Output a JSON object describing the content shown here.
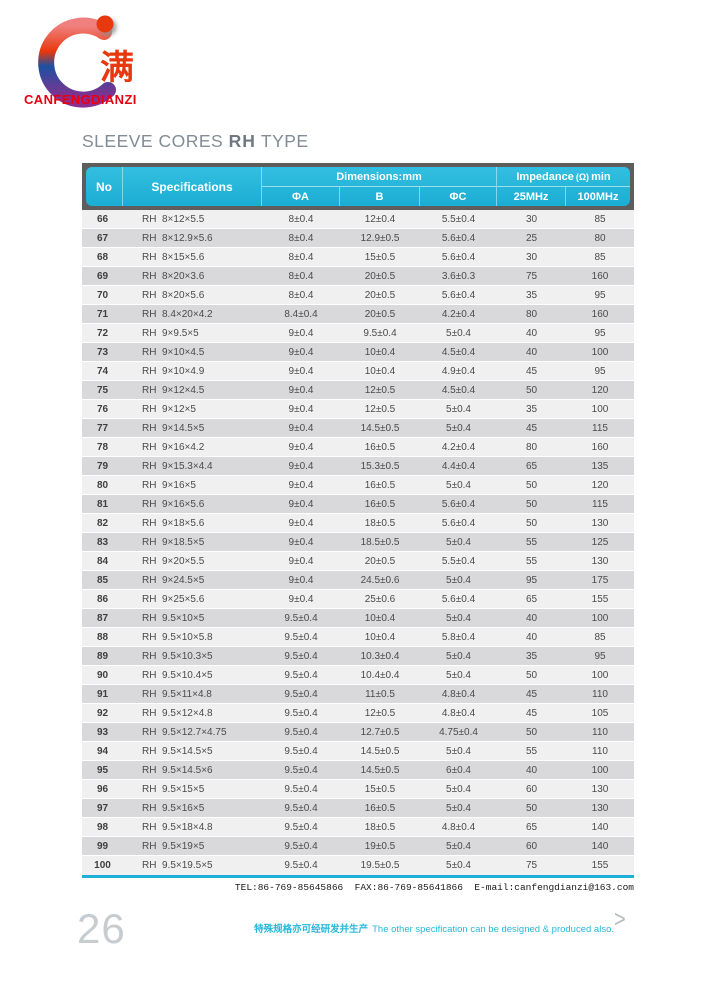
{
  "logo": {
    "brand": "CANFENGDIANZI",
    "glyph": "满",
    "dot_color": "#e8380d",
    "red": "#e8380d",
    "blue": "#1d50a2",
    "purple": "#8c2f8e"
  },
  "title": {
    "prefix": "SLEEVE CORES ",
    "bold": "RH",
    "suffix": " TYPE"
  },
  "table": {
    "headers": {
      "no": "No",
      "specifications": "Specifications",
      "dimensions": "Dimensions:mm",
      "impedance_word": "Impedance",
      "impedance_omega": "(Ω)",
      "impedance_min": "min",
      "phi_a": "ΦA",
      "b": "B",
      "phi_c": "ΦC",
      "f25": "25MHz",
      "f100": "100MHz"
    },
    "rows": [
      [
        "66",
        "RH  8×12×5.5",
        "8±0.4",
        "12±0.4",
        "5.5±0.4",
        "30",
        "85"
      ],
      [
        "67",
        "RH  8×12.9×5.6",
        "8±0.4",
        "12.9±0.5",
        "5.6±0.4",
        "25",
        "80"
      ],
      [
        "68",
        "RH  8×15×5.6",
        "8±0.4",
        "15±0.5",
        "5.6±0.4",
        "30",
        "85"
      ],
      [
        "69",
        "RH  8×20×3.6",
        "8±0.4",
        "20±0.5",
        "3.6±0.3",
        "75",
        "160"
      ],
      [
        "70",
        "RH  8×20×5.6",
        "8±0.4",
        "20±0.5",
        "5.6±0.4",
        "35",
        "95"
      ],
      [
        "71",
        "RH  8.4×20×4.2",
        "8.4±0.4",
        "20±0.5",
        "4.2±0.4",
        "80",
        "160"
      ],
      [
        "72",
        "RH  9×9.5×5",
        "9±0.4",
        "9.5±0.4",
        "5±0.4",
        "40",
        "95"
      ],
      [
        "73",
        "RH  9×10×4.5",
        "9±0.4",
        "10±0.4",
        "4.5±0.4",
        "40",
        "100"
      ],
      [
        "74",
        "RH  9×10×4.9",
        "9±0.4",
        "10±0.4",
        "4.9±0.4",
        "45",
        "95"
      ],
      [
        "75",
        "RH  9×12×4.5",
        "9±0.4",
        "12±0.5",
        "4.5±0.4",
        "50",
        "120"
      ],
      [
        "76",
        "RH  9×12×5",
        "9±0.4",
        "12±0.5",
        "5±0.4",
        "35",
        "100"
      ],
      [
        "77",
        "RH  9×14.5×5",
        "9±0.4",
        "14.5±0.5",
        "5±0.4",
        "45",
        "115"
      ],
      [
        "78",
        "RH  9×16×4.2",
        "9±0.4",
        "16±0.5",
        "4.2±0.4",
        "80",
        "160"
      ],
      [
        "79",
        "RH  9×15.3×4.4",
        "9±0.4",
        "15.3±0.5",
        "4.4±0.4",
        "65",
        "135"
      ],
      [
        "80",
        "RH  9×16×5",
        "9±0.4",
        "16±0.5",
        "5±0.4",
        "50",
        "120"
      ],
      [
        "81",
        "RH  9×16×5.6",
        "9±0.4",
        "16±0.5",
        "5.6±0.4",
        "50",
        "115"
      ],
      [
        "82",
        "RH  9×18×5.6",
        "9±0.4",
        "18±0.5",
        "5.6±0.4",
        "50",
        "130"
      ],
      [
        "83",
        "RH  9×18.5×5",
        "9±0.4",
        "18.5±0.5",
        "5±0.4",
        "55",
        "125"
      ],
      [
        "84",
        "RH  9×20×5.5",
        "9±0.4",
        "20±0.5",
        "5.5±0.4",
        "55",
        "130"
      ],
      [
        "85",
        "RH  9×24.5×5",
        "9±0.4",
        "24.5±0.6",
        "5±0.4",
        "95",
        "175"
      ],
      [
        "86",
        "RH  9×25×5.6",
        "9±0.4",
        "25±0.6",
        "5.6±0.4",
        "65",
        "155"
      ],
      [
        "87",
        "RH  9.5×10×5",
        "9.5±0.4",
        "10±0.4",
        "5±0.4",
        "40",
        "100"
      ],
      [
        "88",
        "RH  9.5×10×5.8",
        "9.5±0.4",
        "10±0.4",
        "5.8±0.4",
        "40",
        "85"
      ],
      [
        "89",
        "RH  9.5×10.3×5",
        "9.5±0.4",
        "10.3±0.4",
        "5±0.4",
        "35",
        "95"
      ],
      [
        "90",
        "RH  9.5×10.4×5",
        "9.5±0.4",
        "10.4±0.4",
        "5±0.4",
        "50",
        "100"
      ],
      [
        "91",
        "RH  9.5×11×4.8",
        "9.5±0.4",
        "11±0.5",
        "4.8±0.4",
        "45",
        "110"
      ],
      [
        "92",
        "RH  9.5×12×4.8",
        "9.5±0.4",
        "12±0.5",
        "4.8±0.4",
        "45",
        "105"
      ],
      [
        "93",
        "RH  9.5×12.7×4.75",
        "9.5±0.4",
        "12.7±0.5",
        "4.75±0.4",
        "50",
        "110"
      ],
      [
        "94",
        "RH  9.5×14.5×5",
        "9.5±0.4",
        "14.5±0.5",
        "5±0.4",
        "55",
        "110"
      ],
      [
        "95",
        "RH  9.5×14.5×6",
        "9.5±0.4",
        "14.5±0.5",
        "6±0.4",
        "40",
        "100"
      ],
      [
        "96",
        "RH  9.5×15×5",
        "9.5±0.4",
        "15±0.5",
        "5±0.4",
        "60",
        "130"
      ],
      [
        "97",
        "RH  9.5×16×5",
        "9.5±0.4",
        "16±0.5",
        "5±0.4",
        "50",
        "130"
      ],
      [
        "98",
        "RH  9.5×18×4.8",
        "9.5±0.4",
        "18±0.5",
        "4.8±0.4",
        "65",
        "140"
      ],
      [
        "99",
        "RH  9.5×19×5",
        "9.5±0.4",
        "19±0.5",
        "5±0.4",
        "60",
        "140"
      ],
      [
        "100",
        "RH  9.5×19.5×5",
        "9.5±0.4",
        "19.5±0.5",
        "5±0.4",
        "75",
        "155"
      ]
    ]
  },
  "contact": {
    "line": "TEL:86-769-85645866  FAX:86-769-85641866  E-mail:canfengdianzi@163.com"
  },
  "footer": {
    "page_number": "26",
    "note_zh": "特殊规格亦可经研发并生产",
    "note_en": "The other specification can be designed & produced also.",
    "chevron": ">"
  },
  "colors": {
    "accent_cyan": "#1bb1d8",
    "frame_gray": "#5d5d5d",
    "brand_red": "#e60012",
    "row_light": "#f0f0f1",
    "row_dark": "#d9d9db"
  }
}
